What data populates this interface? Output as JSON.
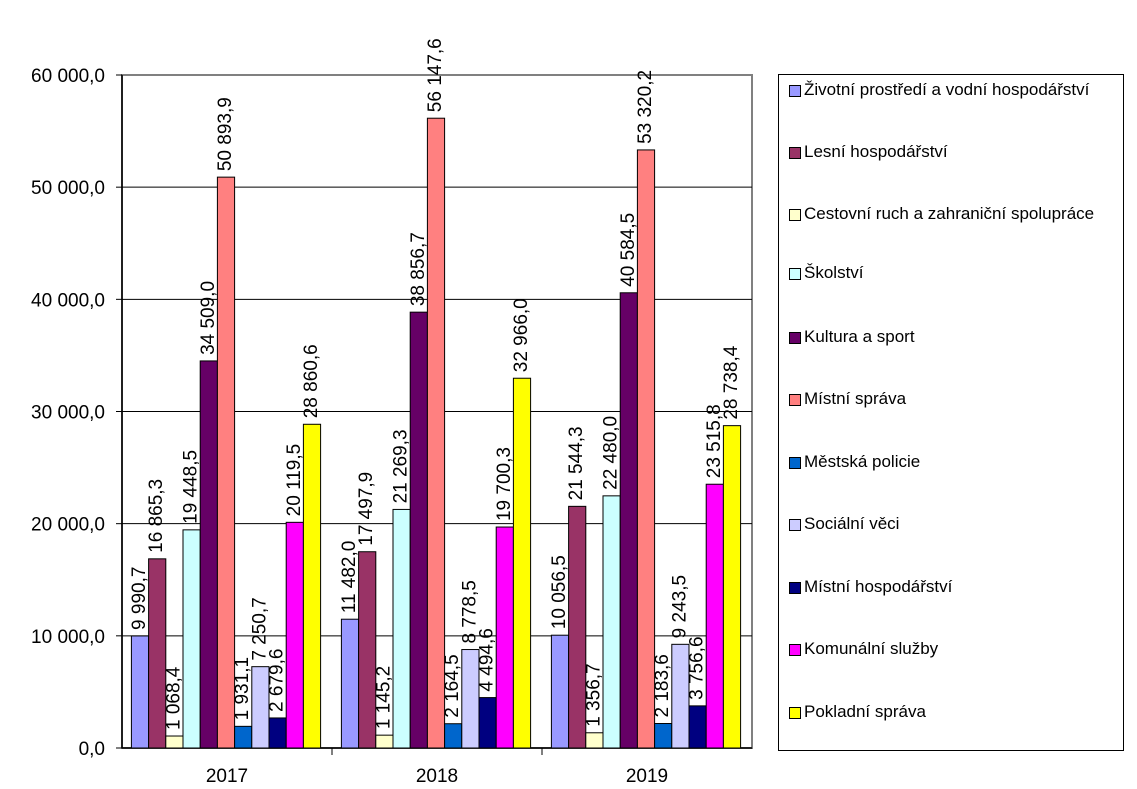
{
  "chart_data": {
    "type": "bar",
    "categories": [
      "2017",
      "2018",
      "2019"
    ],
    "ylim": [
      0,
      60000
    ],
    "yticks": [
      0,
      10000,
      20000,
      30000,
      40000,
      50000,
      60000
    ],
    "ytick_labels": [
      "0,0",
      "10 000,0",
      "20 000,0",
      "30 000,0",
      "40 000,0",
      "50 000,0",
      "60 000,0"
    ],
    "grid": true,
    "legend_position": "right",
    "series": [
      {
        "name": "Životní prostředí a vodní hospodářství",
        "color": "#9999ff",
        "values": [
          9990.7,
          11482.0,
          10056.5
        ],
        "labels": [
          "9 990,7",
          "11 482,0",
          "10 056,5"
        ]
      },
      {
        "name": "Lesní hospodářství",
        "color": "#993366",
        "values": [
          16865.3,
          17497.9,
          21544.3
        ],
        "labels": [
          "16 865,3",
          "17 497,9",
          "21 544,3"
        ]
      },
      {
        "name": "Cestovní ruch a zahraniční spolupráce",
        "color": "#ffffcc",
        "values": [
          1068.4,
          1145.2,
          1356.7
        ],
        "labels": [
          "1 068,4",
          "1 145,2",
          "1 356,7"
        ]
      },
      {
        "name": "Školství",
        "color": "#ccffff",
        "values": [
          19448.5,
          21269.3,
          22480.0
        ],
        "labels": [
          "19 448,5",
          "21 269,3",
          "22 480,0"
        ]
      },
      {
        "name": "Kultura a sport",
        "color": "#660066",
        "values": [
          34509.0,
          38856.7,
          40584.5
        ],
        "labels": [
          "34 509,0",
          "38 856,7",
          "40 584,5"
        ]
      },
      {
        "name": "Místní správa",
        "color": "#ff8080",
        "values": [
          50893.9,
          56147.6,
          53320.2
        ],
        "labels": [
          "50 893,9",
          "56 147,6",
          "53 320,2"
        ]
      },
      {
        "name": "Městská policie",
        "color": "#0066cc",
        "values": [
          1931.1,
          2164.5,
          2183.6
        ],
        "labels": [
          "1 931,1",
          "2 164,5",
          "2 183,6"
        ]
      },
      {
        "name": "Sociální věci",
        "color": "#ccccff",
        "values": [
          7250.7,
          8778.5,
          9243.5
        ],
        "labels": [
          "7 250,7",
          "8 778,5",
          "9 243,5"
        ]
      },
      {
        "name": "Místní hospodářství",
        "color": "#000080",
        "values": [
          2679.6,
          4494.6,
          3756.6
        ],
        "labels": [
          "2 679,6",
          "4 494,6",
          "3 756,6"
        ]
      },
      {
        "name": "Komunální služby",
        "color": "#ff00ff",
        "values": [
          20119.5,
          19700.3,
          23515.8
        ],
        "labels": [
          "20 119,5",
          "19 700,3",
          "23 515,8"
        ]
      },
      {
        "name": "Pokladní správa",
        "color": "#ffff00",
        "values": [
          28860.6,
          32966.0,
          28738.4
        ],
        "labels": [
          "28 860,6",
          "32 966,0",
          "28 738,4"
        ]
      }
    ]
  }
}
